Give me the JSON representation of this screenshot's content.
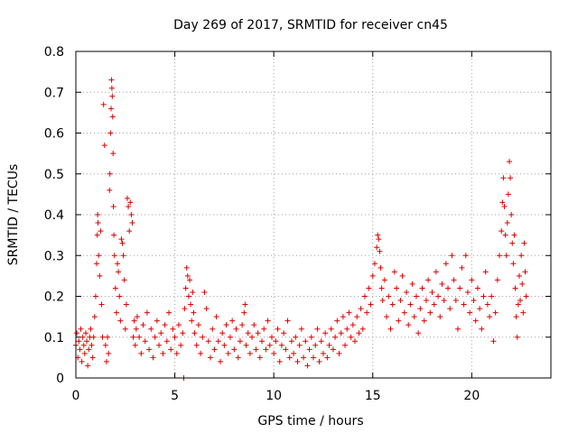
{
  "chart_data": {
    "type": "scatter",
    "title": "Day 269 of 2017, SRMTID for receiver cn45",
    "xlabel": "GPS time / hours",
    "ylabel": "SRMTID / TECUs",
    "xlim": [
      0,
      24
    ],
    "ylim": [
      0,
      0.8
    ],
    "xticks": [
      0,
      5,
      10,
      15,
      20
    ],
    "yticks": [
      0,
      0.1,
      0.2,
      0.3,
      0.4,
      0.5,
      0.6,
      0.7,
      0.8
    ],
    "xtick_labels": [
      "0",
      "5",
      "10",
      "15",
      "20"
    ],
    "ytick_labels": [
      "0",
      "0.1",
      "0.2",
      "0.3",
      "0.4",
      "0.5",
      "0.6",
      "0.7",
      "0.8"
    ],
    "grid": true,
    "marker": "+",
    "color": "#e00000",
    "series": [
      {
        "name": "SRMTID",
        "points": [
          [
            0.0,
            0.08
          ],
          [
            0.05,
            0.11
          ],
          [
            0.1,
            0.05
          ],
          [
            0.15,
            0.09
          ],
          [
            0.2,
            0.07
          ],
          [
            0.25,
            0.12
          ],
          [
            0.3,
            0.04
          ],
          [
            0.35,
            0.1
          ],
          [
            0.4,
            0.08
          ],
          [
            0.45,
            0.06
          ],
          [
            0.5,
            0.11
          ],
          [
            0.55,
            0.09
          ],
          [
            0.6,
            0.03
          ],
          [
            0.65,
            0.07
          ],
          [
            0.7,
            0.1
          ],
          [
            0.75,
            0.12
          ],
          [
            0.8,
            0.08
          ],
          [
            0.85,
            0.05
          ],
          [
            0.9,
            0.1
          ],
          [
            0.95,
            0.15
          ],
          [
            1.0,
            0.2
          ],
          [
            1.05,
            0.28
          ],
          [
            1.08,
            0.35
          ],
          [
            1.1,
            0.4
          ],
          [
            1.12,
            0.38
          ],
          [
            1.15,
            0.3
          ],
          [
            1.2,
            0.25
          ],
          [
            1.25,
            0.36
          ],
          [
            1.3,
            0.18
          ],
          [
            1.35,
            0.1
          ],
          [
            1.4,
            0.67
          ],
          [
            1.45,
            0.57
          ],
          [
            1.5,
            0.08
          ],
          [
            1.55,
            0.04
          ],
          [
            1.6,
            0.1
          ],
          [
            1.65,
            0.06
          ],
          [
            1.7,
            0.46
          ],
          [
            1.72,
            0.5
          ],
          [
            1.75,
            0.6
          ],
          [
            1.78,
            0.66
          ],
          [
            1.8,
            0.73
          ],
          [
            1.82,
            0.71
          ],
          [
            1.84,
            0.69
          ],
          [
            1.86,
            0.64
          ],
          [
            1.88,
            0.55
          ],
          [
            1.9,
            0.42
          ],
          [
            1.92,
            0.35
          ],
          [
            1.95,
            0.3
          ],
          [
            2.0,
            0.22
          ],
          [
            2.05,
            0.16
          ],
          [
            2.1,
            0.28
          ],
          [
            2.15,
            0.26
          ],
          [
            2.2,
            0.2
          ],
          [
            2.25,
            0.14
          ],
          [
            2.3,
            0.34
          ],
          [
            2.35,
            0.33
          ],
          [
            2.4,
            0.3
          ],
          [
            2.45,
            0.24
          ],
          [
            2.5,
            0.12
          ],
          [
            2.55,
            0.18
          ],
          [
            2.6,
            0.44
          ],
          [
            2.65,
            0.42
          ],
          [
            2.7,
            0.36
          ],
          [
            2.75,
            0.43
          ],
          [
            2.8,
            0.4
          ],
          [
            2.85,
            0.38
          ],
          [
            2.9,
            0.1
          ],
          [
            2.95,
            0.14
          ],
          [
            3.0,
            0.08
          ],
          [
            3.05,
            0.12
          ],
          [
            3.1,
            0.15
          ],
          [
            3.2,
            0.1
          ],
          [
            3.3,
            0.06
          ],
          [
            3.4,
            0.13
          ],
          [
            3.5,
            0.09
          ],
          [
            3.6,
            0.16
          ],
          [
            3.7,
            0.07
          ],
          [
            3.8,
            0.12
          ],
          [
            3.9,
            0.05
          ],
          [
            4.0,
            0.1
          ],
          [
            4.1,
            0.14
          ],
          [
            4.2,
            0.08
          ],
          [
            4.3,
            0.11
          ],
          [
            4.4,
            0.06
          ],
          [
            4.5,
            0.13
          ],
          [
            4.6,
            0.09
          ],
          [
            4.7,
            0.16
          ],
          [
            4.8,
            0.07
          ],
          [
            4.9,
            0.12
          ],
          [
            5.0,
            0.1
          ],
          [
            5.1,
            0.06
          ],
          [
            5.2,
            0.13
          ],
          [
            5.3,
            0.08
          ],
          [
            5.4,
            0.11
          ],
          [
            5.45,
            0.0
          ],
          [
            5.5,
            0.17
          ],
          [
            5.55,
            0.22
          ],
          [
            5.6,
            0.27
          ],
          [
            5.65,
            0.25
          ],
          [
            5.7,
            0.2
          ],
          [
            5.75,
            0.24
          ],
          [
            5.8,
            0.18
          ],
          [
            5.85,
            0.14
          ],
          [
            5.9,
            0.21
          ],
          [
            5.95,
            0.16
          ],
          [
            6.0,
            0.11
          ],
          [
            6.1,
            0.08
          ],
          [
            6.2,
            0.13
          ],
          [
            6.3,
            0.06
          ],
          [
            6.4,
            0.1
          ],
          [
            6.5,
            0.21
          ],
          [
            6.6,
            0.17
          ],
          [
            6.7,
            0.09
          ],
          [
            6.8,
            0.05
          ],
          [
            6.9,
            0.12
          ],
          [
            7.0,
            0.07
          ],
          [
            7.1,
            0.15
          ],
          [
            7.2,
            0.09
          ],
          [
            7.3,
            0.04
          ],
          [
            7.4,
            0.11
          ],
          [
            7.5,
            0.08
          ],
          [
            7.6,
            0.13
          ],
          [
            7.7,
            0.06
          ],
          [
            7.8,
            0.1
          ],
          [
            7.9,
            0.14
          ],
          [
            8.0,
            0.07
          ],
          [
            8.1,
            0.12
          ],
          [
            8.2,
            0.05
          ],
          [
            8.3,
            0.09
          ],
          [
            8.4,
            0.13
          ],
          [
            8.5,
            0.16
          ],
          [
            8.55,
            0.18
          ],
          [
            8.6,
            0.08
          ],
          [
            8.7,
            0.11
          ],
          [
            8.8,
            0.06
          ],
          [
            8.9,
            0.1
          ],
          [
            9.0,
            0.13
          ],
          [
            9.1,
            0.07
          ],
          [
            9.2,
            0.11
          ],
          [
            9.3,
            0.05
          ],
          [
            9.4,
            0.09
          ],
          [
            9.5,
            0.12
          ],
          [
            9.6,
            0.07
          ],
          [
            9.7,
            0.14
          ],
          [
            9.8,
            0.08
          ],
          [
            9.9,
            0.1
          ],
          [
            10.0,
            0.06
          ],
          [
            10.1,
            0.09
          ],
          [
            10.2,
            0.12
          ],
          [
            10.3,
            0.04
          ],
          [
            10.4,
            0.08
          ],
          [
            10.5,
            0.11
          ],
          [
            10.6,
            0.07
          ],
          [
            10.7,
            0.14
          ],
          [
            10.8,
            0.05
          ],
          [
            10.9,
            0.09
          ],
          [
            11.0,
            0.06
          ],
          [
            11.1,
            0.1
          ],
          [
            11.2,
            0.04
          ],
          [
            11.3,
            0.08
          ],
          [
            11.4,
            0.12
          ],
          [
            11.5,
            0.05
          ],
          [
            11.6,
            0.09
          ],
          [
            11.7,
            0.03
          ],
          [
            11.8,
            0.07
          ],
          [
            11.9,
            0.1
          ],
          [
            12.0,
            0.05
          ],
          [
            12.1,
            0.08
          ],
          [
            12.2,
            0.12
          ],
          [
            12.3,
            0.04
          ],
          [
            12.4,
            0.09
          ],
          [
            12.5,
            0.06
          ],
          [
            12.6,
            0.11
          ],
          [
            12.7,
            0.05
          ],
          [
            12.8,
            0.08
          ],
          [
            12.9,
            0.12
          ],
          [
            13.0,
            0.07
          ],
          [
            13.1,
            0.1
          ],
          [
            13.2,
            0.14
          ],
          [
            13.3,
            0.06
          ],
          [
            13.4,
            0.11
          ],
          [
            13.5,
            0.15
          ],
          [
            13.6,
            0.08
          ],
          [
            13.7,
            0.12
          ],
          [
            13.8,
            0.16
          ],
          [
            13.9,
            0.1
          ],
          [
            14.0,
            0.13
          ],
          [
            14.1,
            0.09
          ],
          [
            14.2,
            0.15
          ],
          [
            14.3,
            0.11
          ],
          [
            14.4,
            0.17
          ],
          [
            14.5,
            0.12
          ],
          [
            14.6,
            0.2
          ],
          [
            14.7,
            0.16
          ],
          [
            14.8,
            0.22
          ],
          [
            14.9,
            0.18
          ],
          [
            15.0,
            0.25
          ],
          [
            15.1,
            0.28
          ],
          [
            15.2,
            0.32
          ],
          [
            15.25,
            0.35
          ],
          [
            15.3,
            0.34
          ],
          [
            15.35,
            0.31
          ],
          [
            15.4,
            0.27
          ],
          [
            15.45,
            0.22
          ],
          [
            15.5,
            0.19
          ],
          [
            15.6,
            0.24
          ],
          [
            15.7,
            0.15
          ],
          [
            15.8,
            0.2
          ],
          [
            15.9,
            0.12
          ],
          [
            16.0,
            0.18
          ],
          [
            16.1,
            0.26
          ],
          [
            16.2,
            0.22
          ],
          [
            16.3,
            0.14
          ],
          [
            16.4,
            0.19
          ],
          [
            16.5,
            0.25
          ],
          [
            16.6,
            0.16
          ],
          [
            16.7,
            0.21
          ],
          [
            16.8,
            0.13
          ],
          [
            16.9,
            0.18
          ],
          [
            17.0,
            0.23
          ],
          [
            17.1,
            0.15
          ],
          [
            17.2,
            0.2
          ],
          [
            17.3,
            0.11
          ],
          [
            17.4,
            0.17
          ],
          [
            17.5,
            0.22
          ],
          [
            17.6,
            0.14
          ],
          [
            17.7,
            0.19
          ],
          [
            17.8,
            0.24
          ],
          [
            17.9,
            0.16
          ],
          [
            18.0,
            0.21
          ],
          [
            18.1,
            0.18
          ],
          [
            18.2,
            0.26
          ],
          [
            18.3,
            0.2
          ],
          [
            18.4,
            0.15
          ],
          [
            18.5,
            0.23
          ],
          [
            18.6,
            0.19
          ],
          [
            18.7,
            0.28
          ],
          [
            18.8,
            0.22
          ],
          [
            18.9,
            0.17
          ],
          [
            19.0,
            0.3
          ],
          [
            19.1,
            0.24
          ],
          [
            19.2,
            0.19
          ],
          [
            19.3,
            0.12
          ],
          [
            19.4,
            0.22
          ],
          [
            19.5,
            0.27
          ],
          [
            19.6,
            0.18
          ],
          [
            19.7,
            0.3
          ],
          [
            19.8,
            0.21
          ],
          [
            19.9,
            0.16
          ],
          [
            20.0,
            0.24
          ],
          [
            20.1,
            0.19
          ],
          [
            20.2,
            0.14
          ],
          [
            20.3,
            0.22
          ],
          [
            20.4,
            0.17
          ],
          [
            20.5,
            0.12
          ],
          [
            20.6,
            0.2
          ],
          [
            20.7,
            0.26
          ],
          [
            20.8,
            0.18
          ],
          [
            20.9,
            0.15
          ],
          [
            21.0,
            0.2
          ],
          [
            21.1,
            0.09
          ],
          [
            21.2,
            0.16
          ],
          [
            21.3,
            0.24
          ],
          [
            21.4,
            0.3
          ],
          [
            21.5,
            0.36
          ],
          [
            21.55,
            0.43
          ],
          [
            21.6,
            0.49
          ],
          [
            21.65,
            0.42
          ],
          [
            21.7,
            0.35
          ],
          [
            21.75,
            0.3
          ],
          [
            21.8,
            0.38
          ],
          [
            21.85,
            0.45
          ],
          [
            21.9,
            0.53
          ],
          [
            21.95,
            0.49
          ],
          [
            22.0,
            0.4
          ],
          [
            22.05,
            0.33
          ],
          [
            22.1,
            0.28
          ],
          [
            22.15,
            0.35
          ],
          [
            22.2,
            0.22
          ],
          [
            22.25,
            0.15
          ],
          [
            22.3,
            0.1
          ],
          [
            22.35,
            0.18
          ],
          [
            22.4,
            0.25
          ],
          [
            22.45,
            0.19
          ],
          [
            22.5,
            0.3
          ],
          [
            22.55,
            0.23
          ],
          [
            22.6,
            0.16
          ],
          [
            22.65,
            0.33
          ],
          [
            22.7,
            0.26
          ],
          [
            22.75,
            0.2
          ]
        ]
      }
    ]
  }
}
